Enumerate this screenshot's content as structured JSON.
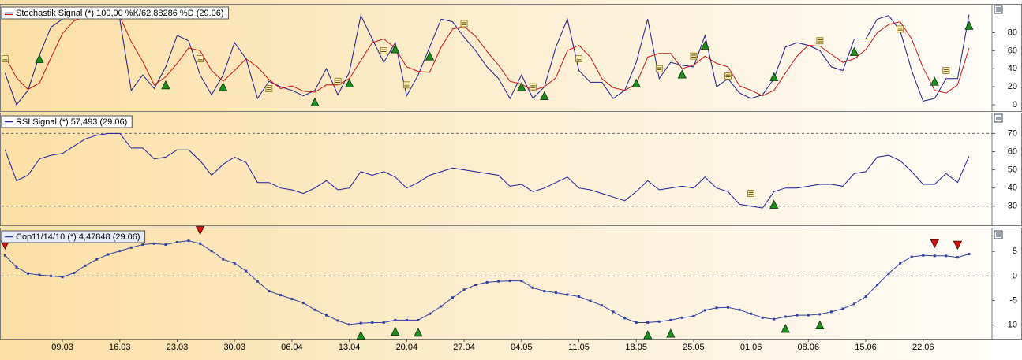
{
  "chart_data": [
    {
      "type": "line",
      "legend": "Stochastik Signal (*) 100,00 %K/62,88286 %D (29.06)",
      "xlim": [
        -0.3,
        86
      ],
      "ylim": [
        -7,
        111
      ],
      "yticks": [
        0,
        20,
        40,
        60,
        80
      ],
      "series": [
        {
          "color": "#1c1c8c",
          "values": [
            35,
            0,
            16,
            55,
            86,
            95,
            99,
            99,
            99,
            99,
            95,
            16,
            33,
            18,
            42,
            77,
            71,
            33,
            11,
            33,
            69,
            51,
            7,
            26,
            20,
            16,
            10,
            16,
            40,
            11,
            36,
            99,
            73,
            47,
            69,
            10,
            33,
            64,
            95,
            92,
            75,
            60,
            42,
            29,
            7,
            33,
            7,
            20,
            64,
            95,
            38,
            25,
            25,
            7,
            16,
            47,
            95,
            29,
            47,
            44,
            42,
            77,
            20,
            29,
            13,
            7,
            11,
            29,
            64,
            69,
            66,
            60,
            42,
            38,
            73,
            73,
            95,
            99,
            82,
            38,
            4,
            7,
            29,
            29,
            100
          ]
        },
        {
          "color": "#d01010",
          "values": [
            54,
            30,
            17,
            24,
            52,
            79,
            93,
            98,
            99,
            99,
            98,
            70,
            48,
            22,
            31,
            46,
            63,
            60,
            38,
            26,
            38,
            51,
            42,
            28,
            18,
            21,
            15,
            14,
            22,
            22,
            29,
            49,
            69,
            73,
            63,
            42,
            37,
            36,
            64,
            84,
            87,
            76,
            59,
            44,
            26,
            23,
            16,
            20,
            30,
            60,
            66,
            53,
            29,
            19,
            16,
            23,
            53,
            57,
            57,
            40,
            44,
            54,
            46,
            42,
            21,
            16,
            10,
            16,
            35,
            54,
            66,
            65,
            56,
            47,
            51,
            61,
            80,
            89,
            92,
            73,
            41,
            16,
            13,
            22,
            62.88286
          ]
        }
      ],
      "markers": [
        {
          "x": 3,
          "y": 51,
          "shape": "up"
        },
        {
          "x": 14,
          "y": 22,
          "shape": "up"
        },
        {
          "x": 19,
          "y": 20,
          "shape": "up"
        },
        {
          "x": 27,
          "y": 3,
          "shape": "up"
        },
        {
          "x": 30,
          "y": 24,
          "shape": "up"
        },
        {
          "x": 34,
          "y": 62,
          "shape": "up"
        },
        {
          "x": 37,
          "y": 54,
          "shape": "up"
        },
        {
          "x": 45,
          "y": 20,
          "shape": "up"
        },
        {
          "x": 47,
          "y": 10,
          "shape": "up"
        },
        {
          "x": 55,
          "y": 24,
          "shape": "up"
        },
        {
          "x": 59,
          "y": 34,
          "shape": "up"
        },
        {
          "x": 61,
          "y": 66,
          "shape": "up"
        },
        {
          "x": 67,
          "y": 31,
          "shape": "up"
        },
        {
          "x": 74,
          "y": 59,
          "shape": "up"
        },
        {
          "x": 81,
          "y": 26,
          "shape": "up"
        },
        {
          "x": 84,
          "y": 88,
          "shape": "up"
        },
        {
          "x": 0,
          "y": 51,
          "shape": "equal"
        },
        {
          "x": 17,
          "y": 51,
          "shape": "equal"
        },
        {
          "x": 23,
          "y": 18,
          "shape": "equal"
        },
        {
          "x": 29,
          "y": 26,
          "shape": "equal"
        },
        {
          "x": 33,
          "y": 60,
          "shape": "equal"
        },
        {
          "x": 35,
          "y": 22,
          "shape": "equal"
        },
        {
          "x": 40,
          "y": 90,
          "shape": "equal"
        },
        {
          "x": 46,
          "y": 20,
          "shape": "equal"
        },
        {
          "x": 50,
          "y": 51,
          "shape": "equal"
        },
        {
          "x": 57,
          "y": 40,
          "shape": "equal"
        },
        {
          "x": 60,
          "y": 54,
          "shape": "equal"
        },
        {
          "x": 63,
          "y": 32,
          "shape": "equal"
        },
        {
          "x": 71,
          "y": 71,
          "shape": "equal"
        },
        {
          "x": 78,
          "y": 84,
          "shape": "equal"
        },
        {
          "x": 82,
          "y": 38,
          "shape": "equal"
        }
      ]
    },
    {
      "type": "line",
      "legend": "RSI Signal (*) 57,493 (29.06)",
      "xlim": [
        -0.3,
        86
      ],
      "ylim": [
        19.5,
        81
      ],
      "yticks": [
        30,
        40,
        50,
        60,
        70
      ],
      "levels": [
        30,
        70
      ],
      "series": [
        {
          "color": "#1c1c9c",
          "values": [
            61,
            44,
            47,
            56,
            58,
            59,
            63,
            67,
            69,
            70,
            70,
            62,
            62,
            56,
            57,
            61,
            61,
            55,
            47,
            53,
            57,
            54,
            43,
            43,
            40,
            39,
            37,
            40,
            44,
            39,
            40,
            49,
            47,
            49,
            46,
            40,
            43,
            47,
            49,
            51,
            50,
            49,
            48,
            47,
            41,
            42,
            38,
            40,
            43,
            46,
            40,
            39,
            37,
            35,
            33,
            38,
            44,
            39,
            40,
            41,
            40,
            46,
            40,
            38,
            31,
            30,
            29,
            38,
            40,
            40,
            41,
            42,
            42,
            41,
            48,
            49,
            57,
            58,
            55,
            49,
            42,
            42,
            48,
            43,
            57.493
          ]
        }
      ],
      "markers": [
        {
          "x": 65,
          "y": 37,
          "shape": "equal"
        },
        {
          "x": 67,
          "y": 31,
          "shape": "up"
        }
      ]
    },
    {
      "type": "line",
      "legend": "Cop11/14/10 (*) 4,47848 (29.06)",
      "dots": true,
      "xlim": [
        -0.3,
        86
      ],
      "ylim": [
        -12.8,
        9.7
      ],
      "yticks": [
        -10,
        -5,
        0,
        5
      ],
      "levels": [
        0
      ],
      "xticks": [
        {
          "value": 5,
          "label": "09.03"
        },
        {
          "value": 10,
          "label": "16.03"
        },
        {
          "value": 15,
          "label": "23.03"
        },
        {
          "value": 20,
          "label": "30.03"
        },
        {
          "value": 25,
          "label": "06.04"
        },
        {
          "value": 30,
          "label": "13.04"
        },
        {
          "value": 35,
          "label": "20.04"
        },
        {
          "value": 40,
          "label": "27.04"
        },
        {
          "value": 45,
          "label": "04.05"
        },
        {
          "value": 50,
          "label": "11.05"
        },
        {
          "value": 55,
          "label": "18.05"
        },
        {
          "value": 60,
          "label": "25.05"
        },
        {
          "value": 65,
          "label": "01.06"
        },
        {
          "value": 70,
          "label": "08.06"
        },
        {
          "value": 75,
          "label": "15.06"
        },
        {
          "value": 80,
          "label": "22.06"
        }
      ],
      "series": [
        {
          "color": "#3040a0",
          "values": [
            4.2,
            1.8,
            0.5,
            0.2,
            0,
            -0.2,
            0.6,
            2.1,
            3.4,
            4.4,
            5.1,
            5.8,
            6.4,
            6.6,
            6.4,
            6.9,
            7.2,
            6.6,
            5.1,
            3.4,
            2.6,
            1.0,
            -1.1,
            -3.1,
            -3.9,
            -4.7,
            -5.5,
            -6.9,
            -8.0,
            -9.1,
            -9.9,
            -9.6,
            -9.5,
            -9.5,
            -9.0,
            -9.0,
            -9.0,
            -7.7,
            -6.2,
            -4.4,
            -2.8,
            -1.8,
            -1.3,
            -1.1,
            -1.0,
            -1.0,
            -2.4,
            -3.1,
            -3.4,
            -3.8,
            -4.2,
            -5.1,
            -6.0,
            -7.3,
            -8.6,
            -9.5,
            -9.5,
            -9.3,
            -9.0,
            -8.5,
            -8.2,
            -7.0,
            -6.5,
            -6.4,
            -6.9,
            -7.7,
            -8.5,
            -8.8,
            -8.3,
            -8.0,
            -8.0,
            -7.8,
            -7.3,
            -6.7,
            -5.7,
            -4.2,
            -1.8,
            0.5,
            2.6,
            3.9,
            4.2,
            4.1,
            4.1,
            3.8,
            4.47848
          ]
        }
      ],
      "markers": [
        {
          "x": 0,
          "y": 6.3,
          "shape": "down"
        },
        {
          "x": 17,
          "y": 9.3,
          "shape": "down"
        },
        {
          "x": 81,
          "y": 6.6,
          "shape": "down"
        },
        {
          "x": 83,
          "y": 6.3,
          "shape": "down"
        },
        {
          "x": 31,
          "y": -12.1,
          "shape": "up"
        },
        {
          "x": 34,
          "y": -11.3,
          "shape": "up"
        },
        {
          "x": 36,
          "y": -11.5,
          "shape": "up"
        },
        {
          "x": 56,
          "y": -12,
          "shape": "up"
        },
        {
          "x": 58,
          "y": -11.7,
          "shape": "up"
        },
        {
          "x": 68,
          "y": -10.7,
          "shape": "up"
        },
        {
          "x": 71,
          "y": -10,
          "shape": "up"
        }
      ]
    }
  ]
}
